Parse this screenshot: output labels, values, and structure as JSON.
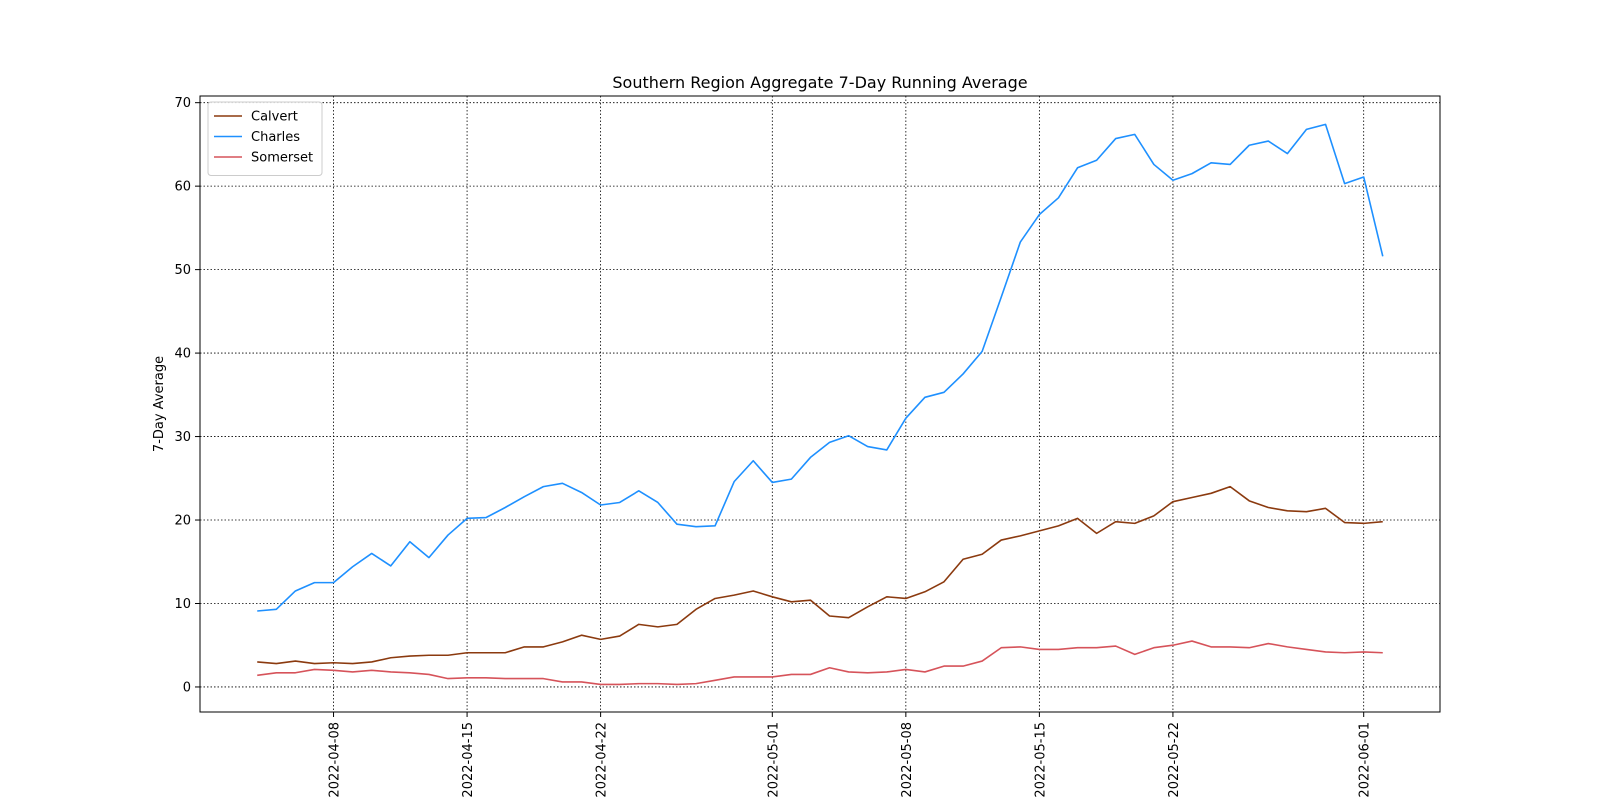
{
  "chart_data": {
    "type": "line",
    "title": "Southern Region Aggregate 7-Day Running Average",
    "xlabel": "",
    "ylabel": "7-Day Average",
    "x_start": "2022-04-04",
    "x": [
      "2022-04-04",
      "2022-04-05",
      "2022-04-06",
      "2022-04-07",
      "2022-04-08",
      "2022-04-09",
      "2022-04-10",
      "2022-04-11",
      "2022-04-12",
      "2022-04-13",
      "2022-04-14",
      "2022-04-15",
      "2022-04-16",
      "2022-04-17",
      "2022-04-18",
      "2022-04-19",
      "2022-04-20",
      "2022-04-21",
      "2022-04-22",
      "2022-04-23",
      "2022-04-24",
      "2022-04-25",
      "2022-04-26",
      "2022-04-27",
      "2022-04-28",
      "2022-04-29",
      "2022-04-30",
      "2022-05-01",
      "2022-05-02",
      "2022-05-03",
      "2022-05-04",
      "2022-05-05",
      "2022-05-06",
      "2022-05-07",
      "2022-05-08",
      "2022-05-09",
      "2022-05-10",
      "2022-05-11",
      "2022-05-12",
      "2022-05-13",
      "2022-05-14",
      "2022-05-15",
      "2022-05-16",
      "2022-05-17",
      "2022-05-18",
      "2022-05-19",
      "2022-05-20",
      "2022-05-21",
      "2022-05-22",
      "2022-05-23",
      "2022-05-24",
      "2022-05-25",
      "2022-05-26",
      "2022-05-27",
      "2022-05-28",
      "2022-05-29",
      "2022-05-30",
      "2022-05-31",
      "2022-06-01",
      "2022-06-02",
      "2022-06-03"
    ],
    "xlim": [
      "2022-04-01",
      "2022-06-05"
    ],
    "ylim": [
      -3,
      70.8
    ],
    "x_ticks": [
      "2022-04-08",
      "2022-04-15",
      "2022-04-22",
      "2022-05-01",
      "2022-05-08",
      "2022-05-15",
      "2022-05-22",
      "2022-06-01"
    ],
    "y_ticks": [
      0,
      10,
      20,
      30,
      40,
      50,
      60,
      70
    ],
    "grid": true,
    "legend_position": "top-left",
    "series": [
      {
        "name": "Calvert",
        "color": "#8b3a0f",
        "values": [
          3.0,
          2.8,
          3.1,
          2.8,
          2.9,
          2.8,
          3.0,
          3.5,
          3.7,
          3.8,
          3.8,
          4.1,
          4.1,
          4.1,
          4.8,
          4.8,
          5.4,
          6.2,
          5.7,
          6.1,
          7.5,
          7.2,
          7.5,
          9.3,
          10.6,
          11.0,
          11.5,
          10.8,
          10.2,
          10.4,
          8.5,
          8.3,
          9.6,
          10.8,
          10.6,
          11.4,
          12.6,
          15.3,
          15.9,
          17.6,
          18.1,
          18.7,
          19.3,
          20.2,
          18.4,
          19.8,
          19.6,
          20.5,
          22.2,
          22.7,
          23.2,
          24.0,
          22.3,
          21.5,
          21.1,
          21.0,
          21.4,
          19.7,
          19.6,
          19.8,
          null
        ]
      },
      {
        "name": "Charles",
        "color": "#1e90ff",
        "values": [
          9.1,
          9.3,
          11.5,
          12.5,
          12.5,
          14.4,
          16.0,
          14.5,
          17.4,
          15.5,
          18.2,
          20.2,
          20.3,
          21.5,
          22.8,
          24.0,
          24.4,
          23.3,
          21.8,
          22.1,
          23.5,
          22.1,
          19.5,
          19.2,
          19.3,
          24.6,
          27.1,
          24.5,
          24.9,
          27.5,
          29.3,
          30.1,
          28.8,
          28.4,
          32.2,
          34.7,
          35.3,
          37.5,
          40.2,
          46.7,
          53.3,
          56.6,
          58.6,
          62.2,
          63.1,
          65.7,
          66.2,
          62.6,
          60.7,
          61.5,
          62.8,
          62.6,
          64.9,
          65.4,
          63.9,
          66.8,
          67.4,
          60.3,
          61.1,
          51.6,
          null
        ]
      },
      {
        "name": "Somerset",
        "color": "#d6535a",
        "values": [
          1.4,
          1.7,
          1.7,
          2.1,
          2.0,
          1.8,
          2.0,
          1.8,
          1.7,
          1.5,
          1.0,
          1.1,
          1.1,
          1.0,
          1.0,
          1.0,
          0.6,
          0.6,
          0.3,
          0.3,
          0.4,
          0.4,
          0.3,
          0.4,
          0.8,
          1.2,
          1.2,
          1.2,
          1.5,
          1.5,
          2.3,
          1.8,
          1.7,
          1.8,
          2.1,
          1.8,
          2.5,
          2.5,
          3.1,
          4.7,
          4.8,
          4.5,
          4.5,
          4.7,
          4.7,
          4.9,
          3.9,
          4.7,
          5.0,
          5.5,
          4.8,
          4.8,
          4.7,
          5.2,
          4.8,
          4.5,
          4.2,
          4.1,
          4.2,
          4.1,
          null
        ]
      }
    ]
  }
}
